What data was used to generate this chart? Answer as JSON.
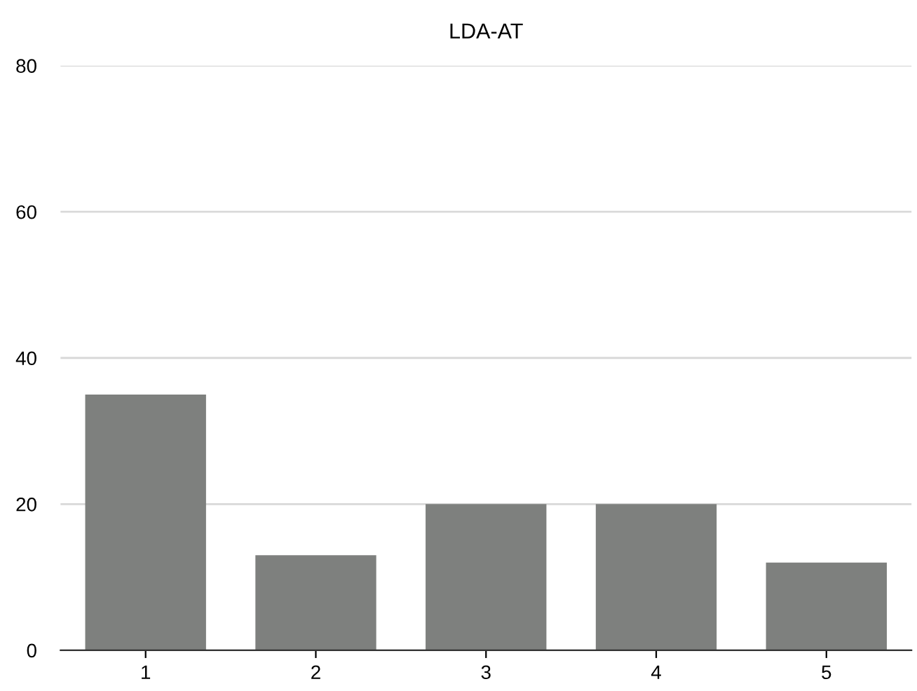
{
  "chart_data": {
    "type": "bar",
    "title": "LDA-AT",
    "categories": [
      "1",
      "2",
      "3",
      "4",
      "5"
    ],
    "values": [
      35,
      13,
      20,
      20,
      12
    ],
    "color": "#7e807e",
    "ylim": [
      0,
      80
    ],
    "yticks": [
      0,
      20,
      40,
      60,
      80
    ],
    "grid": "y"
  }
}
